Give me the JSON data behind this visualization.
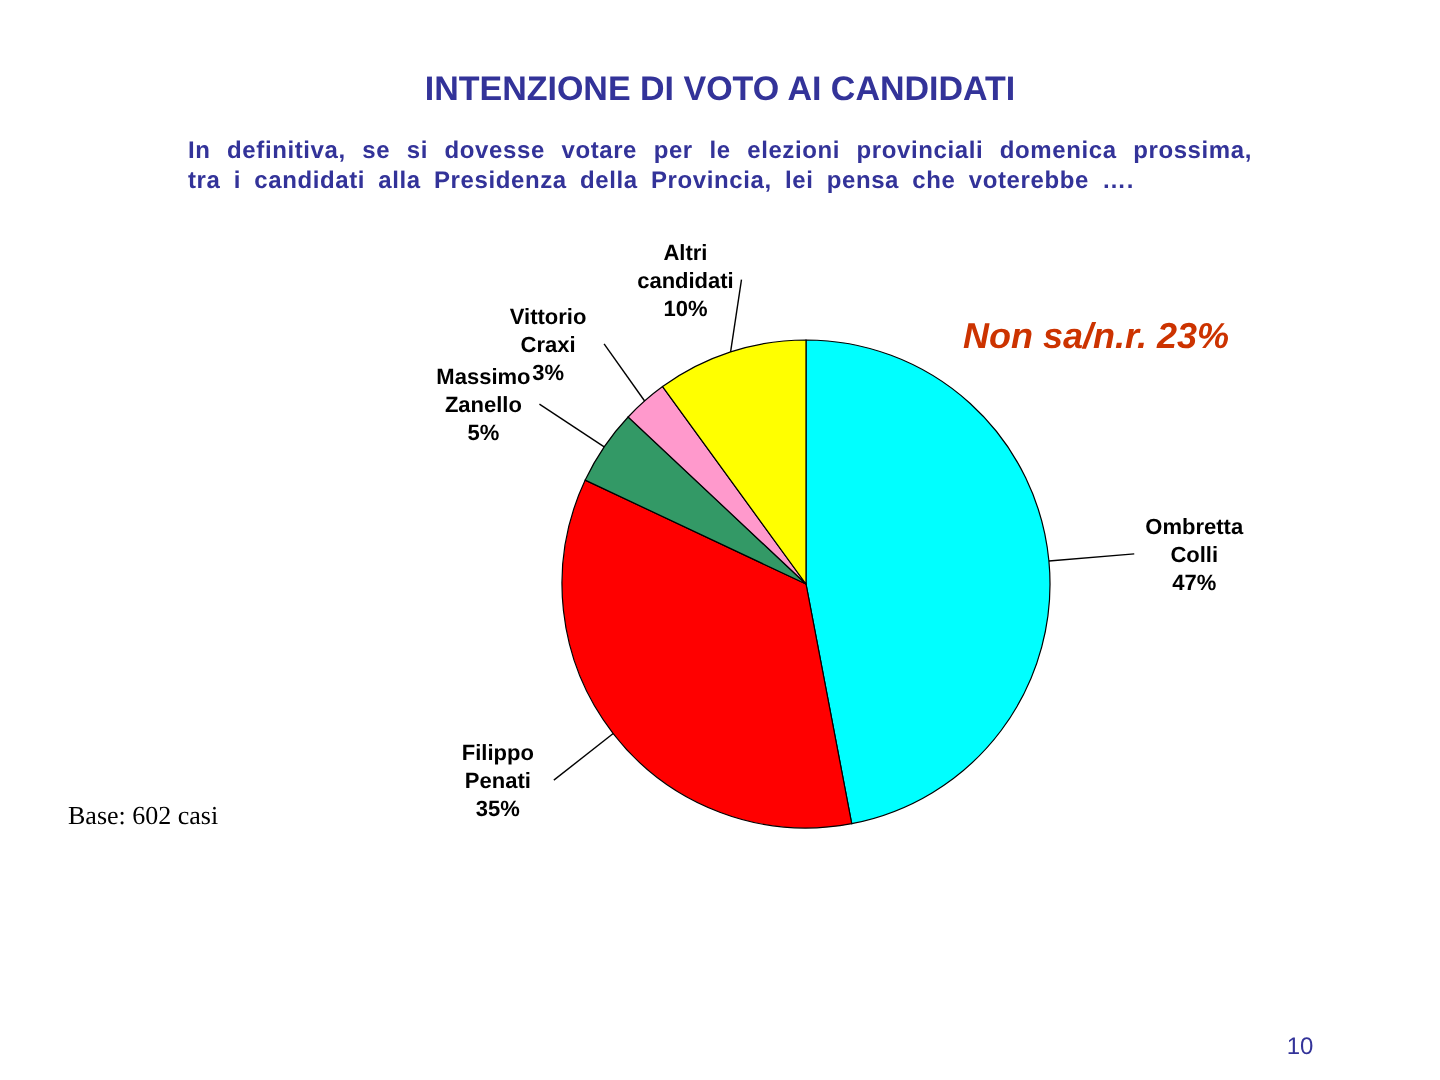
{
  "chart_data": {
    "type": "pie",
    "title": "INTENZIONE DI VOTO AI CANDIDATI",
    "subtitle": "In definitiva, se si dovesse votare per le elezioni provinciali domenica prossima, tra i candidati alla Presidenza della Provincia, lei pensa che voterebbe ….",
    "categories": [
      "Ombretta Colli",
      "Filippo Penati",
      "Massimo Zanello",
      "Vittorio Craxi",
      "Altri candidati"
    ],
    "values": [
      47,
      35,
      5,
      3,
      10
    ],
    "value_labels": [
      "47%",
      "35%",
      "5%",
      "3%",
      "10%"
    ],
    "colors": [
      "#00ffff",
      "#ff0000",
      "#339966",
      "#ff99cc",
      "#ffff00"
    ],
    "annotations": [
      "Non sa/n.r. 23%",
      "Base: 602 casi",
      "10"
    ]
  }
}
